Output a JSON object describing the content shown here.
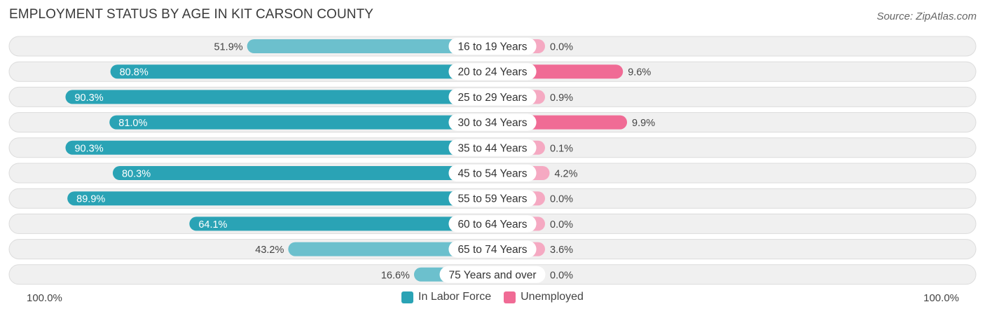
{
  "title": "EMPLOYMENT STATUS BY AGE IN KIT CARSON COUNTY",
  "source": "Source: ZipAtlas.com",
  "colors": {
    "labor_strong": "#2aa3b5",
    "labor_light": "#6cc0cd",
    "unemp_strong": "#f06b95",
    "unemp_light": "#f5a9c2",
    "row_bg": "#f0f0f0",
    "row_border": "#dcdcdc"
  },
  "axis": {
    "left_label": "100.0%",
    "right_label": "100.0%"
  },
  "legend": [
    {
      "label": "In Labor Force",
      "color": "#2aa3b5"
    },
    {
      "label": "Unemployed",
      "color": "#f06b95"
    }
  ],
  "chart_data": {
    "type": "bar",
    "orientation": "horizontal-diverging",
    "title": "EMPLOYMENT STATUS BY AGE IN KIT CARSON COUNTY",
    "categories": [
      "16 to 19 Years",
      "20 to 24 Years",
      "25 to 29 Years",
      "30 to 34 Years",
      "35 to 44 Years",
      "45 to 54 Years",
      "55 to 59 Years",
      "60 to 64 Years",
      "65 to 74 Years",
      "75 Years and over"
    ],
    "series": [
      {
        "name": "In Labor Force",
        "values": [
          51.9,
          80.8,
          90.3,
          81.0,
          90.3,
          80.3,
          89.9,
          64.1,
          43.2,
          16.6
        ],
        "labels": [
          "51.9%",
          "80.8%",
          "90.3%",
          "81.0%",
          "90.3%",
          "80.3%",
          "89.9%",
          "64.1%",
          "43.2%",
          "16.6%"
        ]
      },
      {
        "name": "Unemployed",
        "values": [
          0.0,
          9.6,
          0.9,
          9.9,
          0.1,
          4.2,
          0.0,
          0.0,
          3.6,
          0.0
        ],
        "labels": [
          "0.0%",
          "9.6%",
          "0.9%",
          "9.9%",
          "0.1%",
          "4.2%",
          "0.0%",
          "0.0%",
          "3.6%",
          "0.0%"
        ]
      }
    ],
    "xlim": [
      -100,
      100
    ],
    "legend_position": "bottom-center"
  }
}
